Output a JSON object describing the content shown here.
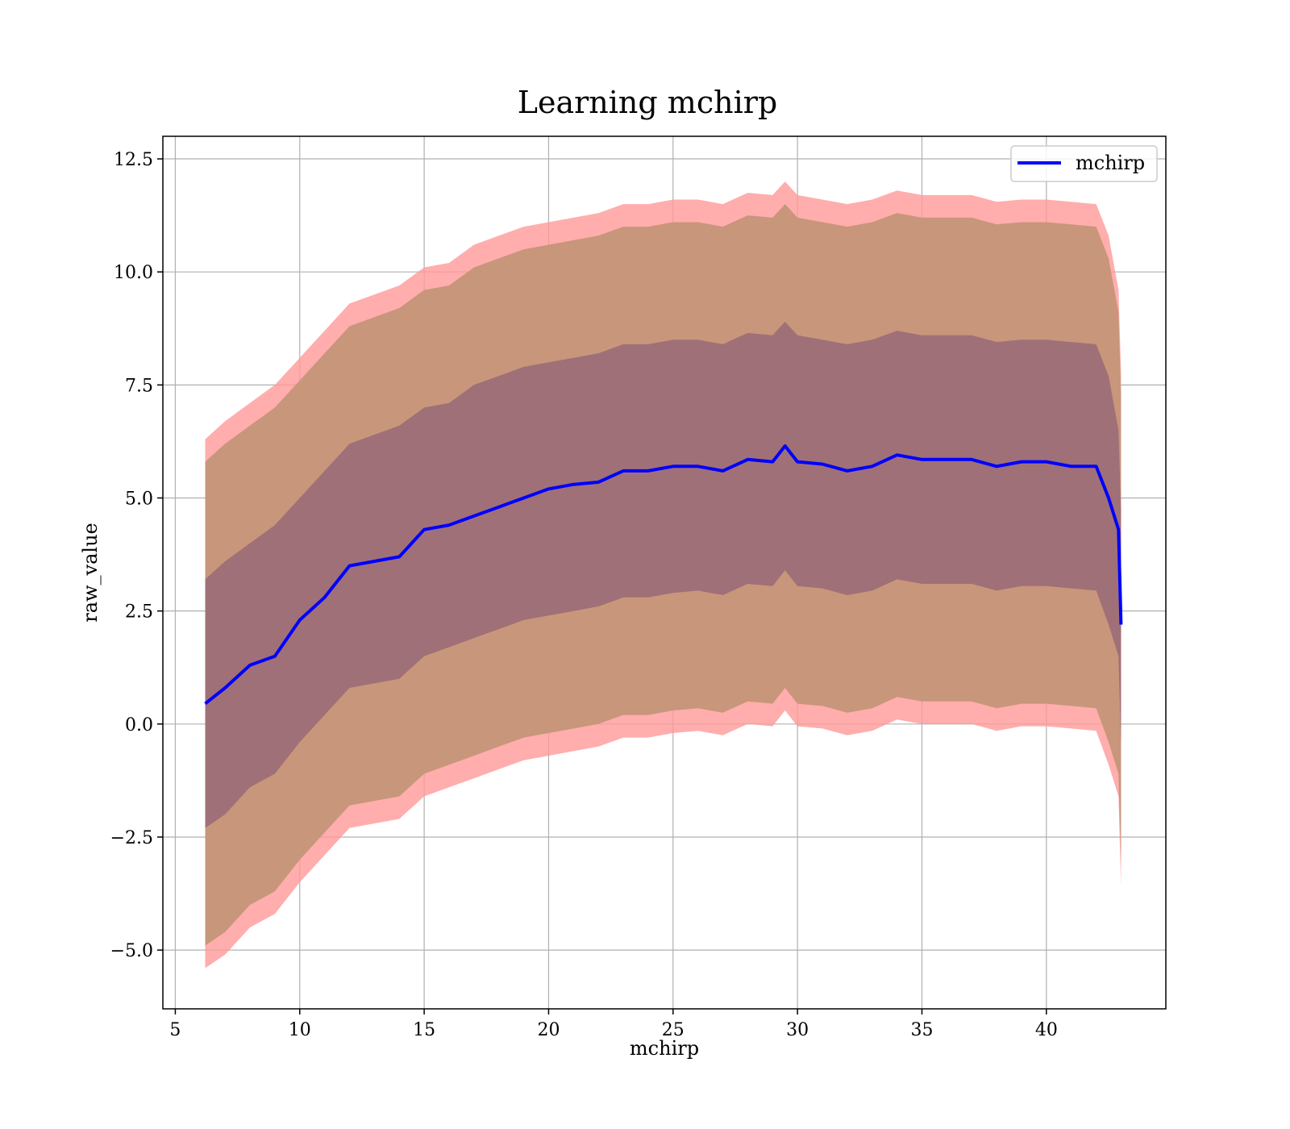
{
  "chart_data": {
    "type": "area",
    "title": "Learning mchirp",
    "xlabel": "mchirp",
    "ylabel": "raw_value",
    "xlim": [
      4.5,
      44.8
    ],
    "ylim": [
      -6.3,
      13.0
    ],
    "xticks": [
      5,
      10,
      15,
      20,
      25,
      30,
      35,
      40
    ],
    "yticks": [
      -5.0,
      -2.5,
      0.0,
      2.5,
      5.0,
      7.5,
      10.0,
      12.5
    ],
    "ytick_labels": [
      "−5.0",
      "−2.5",
      "0.0",
      "2.5",
      "5.0",
      "7.5",
      "10.0",
      "12.5"
    ],
    "grid": true,
    "legend": {
      "position": "top-right",
      "entries": [
        "mchirp"
      ]
    },
    "colors": {
      "line": "#0000ff",
      "band_outer": "#ff9999",
      "band_middle": "#c8967a",
      "band_inner": "#a07078"
    },
    "x": [
      6.2,
      7,
      8,
      9,
      10,
      11,
      12,
      13,
      14,
      15,
      16,
      17,
      18,
      19,
      20,
      21,
      22,
      23,
      24,
      25,
      26,
      27,
      28,
      29,
      29.5,
      30,
      31,
      32,
      33,
      34,
      35,
      36,
      37,
      38,
      39,
      40,
      41,
      42,
      42.5,
      42.9,
      43.0
    ],
    "series": [
      {
        "name": "mchirp",
        "values": [
          0.45,
          0.8,
          1.3,
          1.5,
          2.3,
          2.8,
          3.5,
          3.6,
          3.7,
          4.3,
          4.4,
          4.6,
          4.8,
          5.0,
          5.2,
          5.3,
          5.35,
          5.6,
          5.6,
          5.7,
          5.7,
          5.6,
          5.85,
          5.8,
          6.15,
          5.8,
          5.75,
          5.6,
          5.7,
          5.95,
          5.85,
          5.85,
          5.85,
          5.7,
          5.8,
          5.8,
          5.7,
          5.7,
          5.0,
          4.3,
          2.2
        ]
      }
    ],
    "bands": [
      {
        "level": "outer",
        "upper": [
          6.3,
          6.7,
          7.1,
          7.5,
          8.1,
          8.7,
          9.3,
          9.5,
          9.7,
          10.1,
          10.2,
          10.6,
          10.8,
          11.0,
          11.1,
          11.2,
          11.3,
          11.5,
          11.5,
          11.6,
          11.6,
          11.5,
          11.75,
          11.7,
          12.0,
          11.7,
          11.6,
          11.5,
          11.6,
          11.8,
          11.7,
          11.7,
          11.7,
          11.55,
          11.6,
          11.6,
          11.55,
          11.5,
          10.8,
          9.6,
          7.8
        ],
        "lower": [
          -5.4,
          -5.1,
          -4.5,
          -4.2,
          -3.5,
          -2.9,
          -2.3,
          -2.2,
          -2.1,
          -1.6,
          -1.4,
          -1.2,
          -1.0,
          -0.8,
          -0.7,
          -0.6,
          -0.5,
          -0.3,
          -0.3,
          -0.2,
          -0.15,
          -0.25,
          0.0,
          -0.05,
          0.3,
          -0.05,
          -0.1,
          -0.25,
          -0.15,
          0.1,
          0.0,
          0.0,
          0.0,
          -0.15,
          -0.05,
          -0.05,
          -0.1,
          -0.15,
          -0.9,
          -1.6,
          -3.6
        ]
      },
      {
        "level": "middle",
        "upper": [
          5.8,
          6.2,
          6.6,
          7.0,
          7.6,
          8.2,
          8.8,
          9.0,
          9.2,
          9.6,
          9.7,
          10.1,
          10.3,
          10.5,
          10.6,
          10.7,
          10.8,
          11.0,
          11.0,
          11.1,
          11.1,
          11.0,
          11.25,
          11.2,
          11.5,
          11.2,
          11.1,
          11.0,
          11.1,
          11.3,
          11.2,
          11.2,
          11.2,
          11.05,
          11.1,
          11.1,
          11.05,
          11.0,
          10.3,
          9.1,
          7.3
        ],
        "lower": [
          -4.9,
          -4.6,
          -4.0,
          -3.7,
          -3.0,
          -2.4,
          -1.8,
          -1.7,
          -1.6,
          -1.1,
          -0.9,
          -0.7,
          -0.5,
          -0.3,
          -0.2,
          -0.1,
          0.0,
          0.2,
          0.2,
          0.3,
          0.35,
          0.25,
          0.5,
          0.45,
          0.8,
          0.45,
          0.4,
          0.25,
          0.35,
          0.6,
          0.5,
          0.5,
          0.5,
          0.35,
          0.45,
          0.45,
          0.4,
          0.35,
          -0.4,
          -1.1,
          -3.1
        ]
      },
      {
        "level": "inner",
        "upper": [
          3.2,
          3.6,
          4.0,
          4.4,
          5.0,
          5.6,
          6.2,
          6.4,
          6.6,
          7.0,
          7.1,
          7.5,
          7.7,
          7.9,
          8.0,
          8.1,
          8.2,
          8.4,
          8.4,
          8.5,
          8.5,
          8.4,
          8.65,
          8.6,
          8.9,
          8.6,
          8.5,
          8.4,
          8.5,
          8.7,
          8.6,
          8.6,
          8.6,
          8.45,
          8.5,
          8.5,
          8.45,
          8.4,
          7.7,
          6.5,
          4.7
        ],
        "lower": [
          -2.3,
          -2.0,
          -1.4,
          -1.1,
          -0.4,
          0.2,
          0.8,
          0.9,
          1.0,
          1.5,
          1.7,
          1.9,
          2.1,
          2.3,
          2.4,
          2.5,
          2.6,
          2.8,
          2.8,
          2.9,
          2.95,
          2.85,
          3.1,
          3.05,
          3.4,
          3.05,
          3.0,
          2.85,
          2.95,
          3.2,
          3.1,
          3.1,
          3.1,
          2.95,
          3.05,
          3.05,
          3.0,
          2.95,
          2.2,
          1.5,
          -0.5
        ]
      }
    ]
  }
}
